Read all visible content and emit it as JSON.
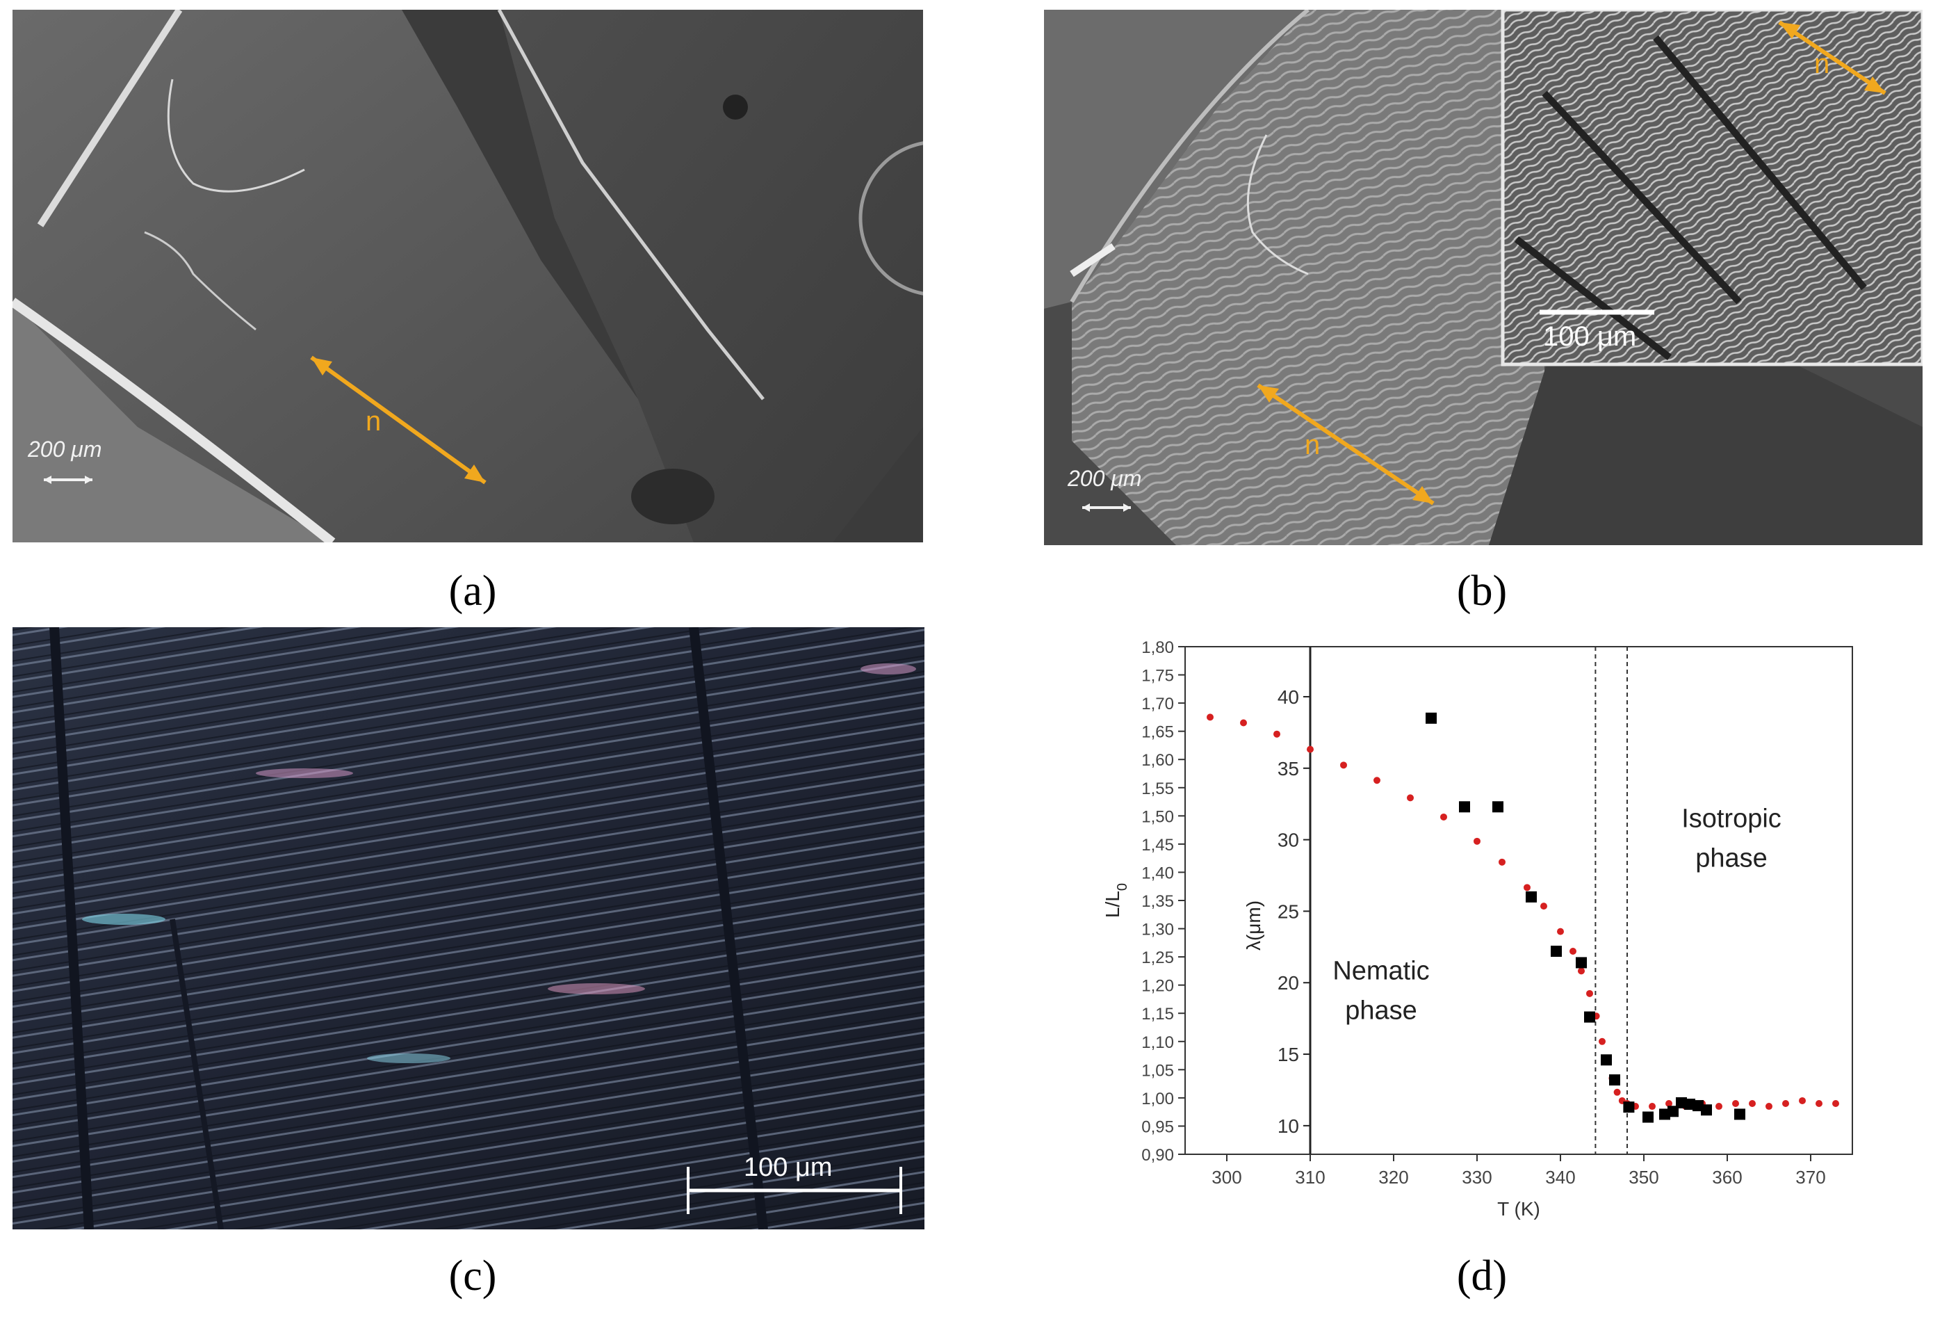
{
  "captions": [
    "(a)",
    "(b)",
    "(c)",
    "(d)"
  ],
  "panel_a": {
    "scale_label": "200 μm",
    "director_label": "n"
  },
  "panel_b": {
    "scale_label": "200 μm",
    "director_label": "n",
    "inset_scale_label": "100 μm",
    "inset_director_label": "n"
  },
  "panel_c": {
    "scale_label": "100 μm"
  },
  "colors": {
    "director": "#f1a81e",
    "series_strain": "#d62020",
    "series_lambda": "#000000"
  },
  "chart_data": {
    "type": "scatter",
    "xlabel": "T (K)",
    "ylabel_left": "L/L0",
    "ylabel_right": "λ(μm)",
    "xlim": [
      295,
      375
    ],
    "ylim_left": [
      0.9,
      1.8
    ],
    "ylim_right": [
      8,
      43.5
    ],
    "x_ticks": [
      "300",
      "310",
      "320",
      "330",
      "340",
      "350",
      "360",
      "370"
    ],
    "y_left_ticks": [
      "0,90",
      "0,95",
      "1,00",
      "1,05",
      "1,10",
      "1,15",
      "1,20",
      "1,25",
      "1,30",
      "1,35",
      "1,40",
      "1,45",
      "1,50",
      "1,55",
      "1,60",
      "1,65",
      "1,70",
      "1,75",
      "1,80"
    ],
    "y_right_ticks": [
      "10",
      "15",
      "20",
      "25",
      "30",
      "35",
      "40"
    ],
    "dashed_lines_x": [
      344.2,
      348
    ],
    "inner_axis_x": 310,
    "annotations": [
      {
        "text": "Nematic",
        "x": 318.5,
        "y_left": 1.21
      },
      {
        "text": "phase",
        "x": 318.5,
        "y_left": 1.14
      },
      {
        "text": "Isotropic",
        "x": 360.5,
        "y_left": 1.48
      },
      {
        "text": "phase",
        "x": 360.5,
        "y_left": 1.41
      }
    ],
    "series": [
      {
        "axis": "left",
        "marker": "circle",
        "x": [
          298,
          302,
          306,
          310,
          314,
          318,
          322,
          326,
          330,
          333,
          336,
          338,
          340,
          341.5,
          342.5,
          343.5,
          344.3,
          345,
          345.6,
          346.2,
          346.8,
          347.4,
          348,
          349,
          351,
          353,
          355,
          357,
          359,
          361,
          363,
          365,
          367,
          369,
          371,
          373
        ],
        "y": [
          1.675,
          1.665,
          1.645,
          1.618,
          1.59,
          1.563,
          1.532,
          1.498,
          1.455,
          1.418,
          1.373,
          1.34,
          1.295,
          1.26,
          1.225,
          1.185,
          1.145,
          1.1,
          1.065,
          1.035,
          1.01,
          0.995,
          0.99,
          0.985,
          0.985,
          0.99,
          0.985,
          0.99,
          0.985,
          0.99,
          0.99,
          0.985,
          0.99,
          0.995,
          0.99,
          0.99
        ]
      },
      {
        "axis": "right",
        "marker": "square",
        "x": [
          324.5,
          328.5,
          332.5,
          336.5,
          339.5,
          342.5,
          343.5,
          345.5,
          346.5,
          348.2,
          350.5,
          352.5,
          353.5,
          354.5,
          355.5,
          356.5,
          357.5,
          361.5
        ],
        "y": [
          38.5,
          32.3,
          32.3,
          26.0,
          22.2,
          21.4,
          17.6,
          14.6,
          13.2,
          11.3,
          10.6,
          10.8,
          11.0,
          11.6,
          11.5,
          11.4,
          11.1,
          10.8
        ]
      }
    ]
  }
}
